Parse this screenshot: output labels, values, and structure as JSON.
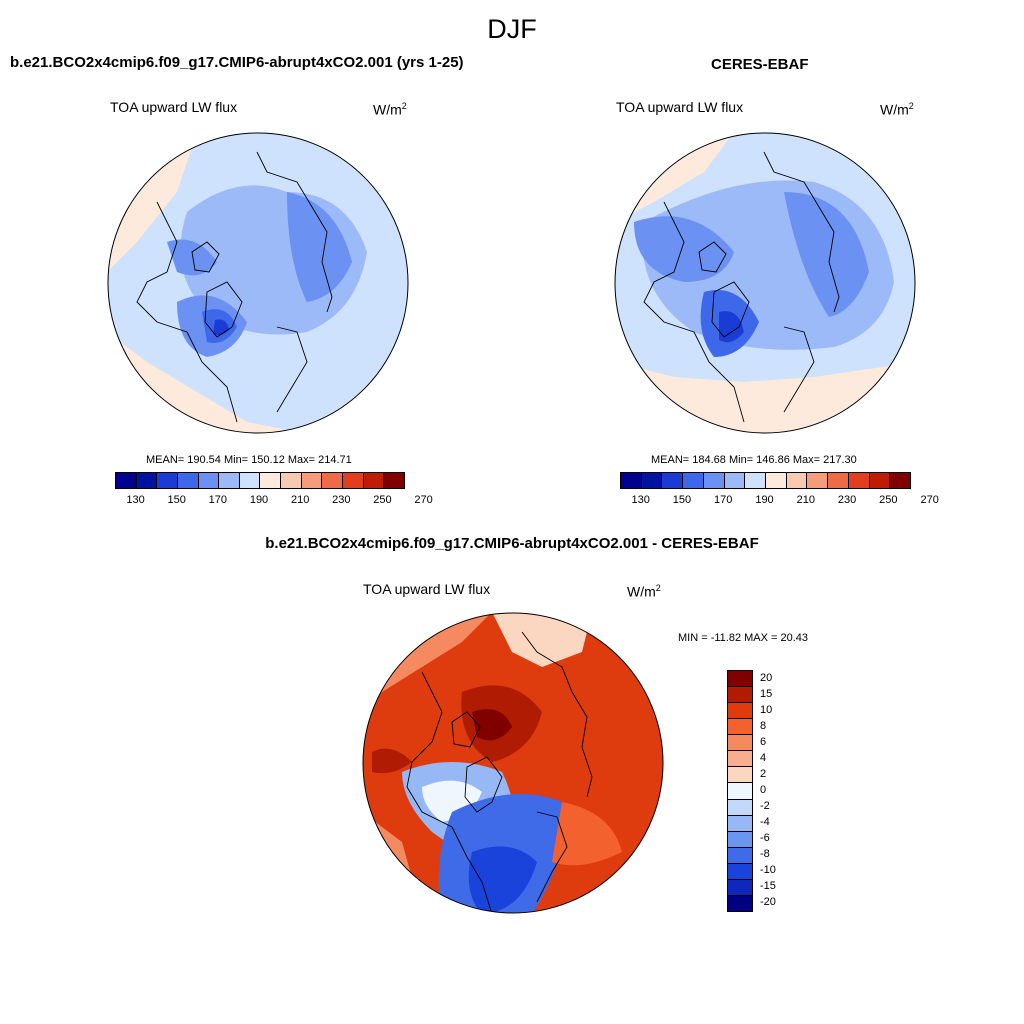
{
  "page_title": "DJF",
  "colors": {
    "abs_scale": [
      "#00008f",
      "#0013a0",
      "#1a3bd4",
      "#3e68ea",
      "#6b92f2",
      "#9cbaf7",
      "#cfe2fd",
      "#fdeadc",
      "#f9c9b0",
      "#f59d7b",
      "#ef6a47",
      "#e23d1c",
      "#c01b04",
      "#800000"
    ],
    "diff_scale": [
      "#800000",
      "#b01b04",
      "#de3b0e",
      "#f2612e",
      "#f58a60",
      "#f8ae8e",
      "#fbd7c1",
      "#eff6fd",
      "#c3d9fa",
      "#96b9f5",
      "#6b95ef",
      "#3f6be8",
      "#1a43dc",
      "#0f28bb",
      "#000080"
    ]
  },
  "panels": [
    {
      "title": "b.e21.BCO2x4cmip6.f09_g17.CMIP6-abrupt4xCO2.001 (yrs 1-25)",
      "variable": "TOA upward LW flux",
      "units": "W/m",
      "units_sup": "2",
      "stats": "MEAN= 190.54  Min= 150.12  Max= 214.71",
      "cbar_ticks": [
        "130",
        "150",
        "170",
        "190",
        "210",
        "230",
        "250",
        "270"
      ]
    },
    {
      "title": "CERES-EBAF",
      "variable": "TOA upward LW flux",
      "units": "W/m",
      "units_sup": "2",
      "stats": "MEAN= 184.68  Min= 146.86  Max= 217.30",
      "cbar_ticks": [
        "130",
        "150",
        "170",
        "190",
        "210",
        "230",
        "250",
        "270"
      ]
    }
  ],
  "diff_panel": {
    "title": "b.e21.BCO2x4cmip6.f09_g17.CMIP6-abrupt4xCO2.001 - CERES-EBAF",
    "variable": "TOA upward LW flux",
    "units": "W/m",
    "units_sup": "2",
    "stats": "MIN = -11.82 MAX =  20.43",
    "cbar_ticks": [
      "20",
      "15",
      "10",
      "8",
      "6",
      "4",
      "2",
      "0",
      "-2",
      "-4",
      "-6",
      "-8",
      "-10",
      "-15",
      "-20"
    ]
  }
}
